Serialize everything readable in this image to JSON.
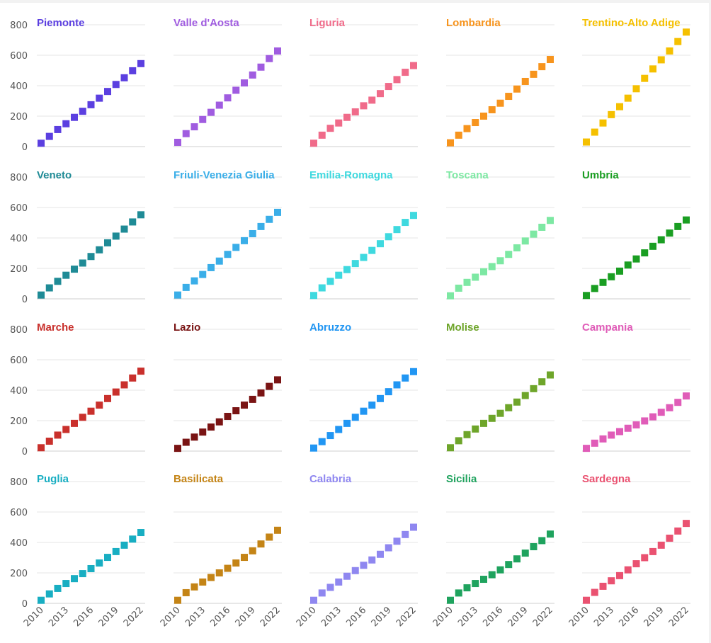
{
  "chart_data": {
    "type": "scatter",
    "title": "",
    "xlabel": "",
    "ylabel": "",
    "ylim": [
      0,
      800
    ],
    "y_ticks": [
      "0",
      "200",
      "400",
      "600",
      "800"
    ],
    "x_ticks": [
      "2010",
      "2013",
      "2016",
      "2019",
      "2022"
    ],
    "x": [
      2010,
      2011,
      2012,
      2013,
      2014,
      2015,
      2016,
      2017,
      2018,
      2019,
      2020,
      2021,
      2022
    ],
    "grid": true,
    "marker": "square",
    "panels": [
      {
        "name": "Piemonte",
        "color": "#5b3fe0",
        "values": [
          22,
          67,
          112,
          150,
          192,
          232,
          275,
          318,
          362,
          408,
          452,
          498,
          545
        ]
      },
      {
        "name": "Valle d'Aosta",
        "color": "#a05ce0",
        "values": [
          28,
          85,
          130,
          178,
          225,
          272,
          320,
          370,
          418,
          470,
          522,
          578,
          628
        ]
      },
      {
        "name": "Liguria",
        "color": "#f06b8a",
        "values": [
          22,
          75,
          120,
          155,
          192,
          228,
          268,
          305,
          348,
          395,
          440,
          488,
          532
        ]
      },
      {
        "name": "Lombardia",
        "color": "#f7941d",
        "values": [
          25,
          75,
          118,
          158,
          200,
          242,
          285,
          330,
          378,
          428,
          475,
          525,
          572
        ]
      },
      {
        "name": "Trentino-Alto Adige",
        "color": "#f5c000",
        "values": [
          30,
          95,
          155,
          210,
          262,
          318,
          380,
          448,
          510,
          570,
          628,
          690,
          752
        ]
      },
      {
        "name": "Veneto",
        "color": "#1f8b96",
        "values": [
          25,
          72,
          115,
          155,
          195,
          235,
          278,
          322,
          368,
          412,
          458,
          505,
          552
        ]
      },
      {
        "name": "Friuli-Venezia Giulia",
        "color": "#3aaee8",
        "values": [
          25,
          75,
          118,
          160,
          205,
          248,
          292,
          338,
          382,
          428,
          475,
          522,
          568
        ]
      },
      {
        "name": "Emilia-Romagna",
        "color": "#3fd9df",
        "values": [
          22,
          72,
          115,
          155,
          192,
          232,
          272,
          318,
          362,
          408,
          455,
          502,
          548
        ]
      },
      {
        "name": "Toscana",
        "color": "#7de8a3",
        "values": [
          20,
          70,
          108,
          142,
          178,
          212,
          250,
          292,
          335,
          380,
          425,
          470,
          515
        ]
      },
      {
        "name": "Umbria",
        "color": "#1a9e22",
        "values": [
          22,
          68,
          108,
          145,
          182,
          222,
          262,
          302,
          345,
          388,
          432,
          475,
          518
        ]
      },
      {
        "name": "Marche",
        "color": "#c9302c",
        "values": [
          22,
          65,
          105,
          142,
          182,
          222,
          262,
          302,
          345,
          388,
          435,
          480,
          525
        ]
      },
      {
        "name": "Lazio",
        "color": "#7a1414",
        "values": [
          18,
          58,
          92,
          125,
          158,
          192,
          228,
          265,
          302,
          340,
          382,
          425,
          468
        ]
      },
      {
        "name": "Abruzzo",
        "color": "#2196f3",
        "values": [
          20,
          62,
          102,
          142,
          182,
          222,
          262,
          302,
          345,
          390,
          435,
          480,
          522
        ]
      },
      {
        "name": "Molise",
        "color": "#6ea52a",
        "values": [
          22,
          68,
          108,
          145,
          182,
          215,
          248,
          285,
          322,
          365,
          410,
          455,
          500
        ]
      },
      {
        "name": "Campania",
        "color": "#e05cb8",
        "values": [
          18,
          52,
          80,
          105,
          128,
          150,
          172,
          198,
          225,
          255,
          285,
          320,
          362
        ]
      },
      {
        "name": "Puglia",
        "color": "#18aec2",
        "values": [
          20,
          62,
          98,
          130,
          162,
          195,
          228,
          265,
          302,
          340,
          382,
          422,
          465
        ]
      },
      {
        "name": "Basilicata",
        "color": "#c48416",
        "values": [
          20,
          70,
          108,
          140,
          170,
          200,
          230,
          265,
          302,
          345,
          390,
          435,
          480
        ]
      },
      {
        "name": "Calabria",
        "color": "#8f87f0",
        "values": [
          20,
          68,
          105,
          140,
          178,
          215,
          250,
          285,
          322,
          365,
          408,
          452,
          500
        ]
      },
      {
        "name": "Sicilia",
        "color": "#1fa35e",
        "values": [
          20,
          68,
          102,
          130,
          158,
          188,
          220,
          255,
          292,
          330,
          372,
          412,
          455
        ]
      },
      {
        "name": "Sardegna",
        "color": "#ea5271",
        "values": [
          20,
          72,
          112,
          148,
          182,
          220,
          260,
          300,
          340,
          382,
          428,
          475,
          525
        ]
      }
    ]
  }
}
